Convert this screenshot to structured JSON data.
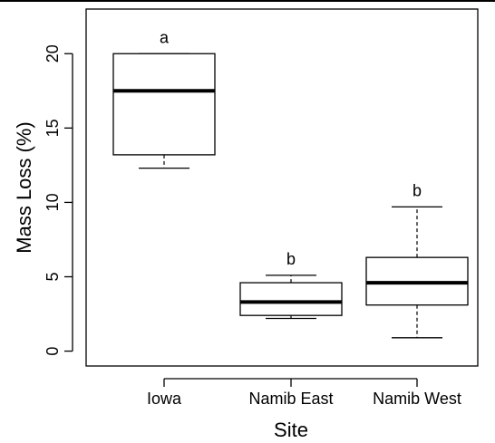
{
  "chart_data": {
    "type": "boxplot",
    "xlabel": "Site",
    "ylabel": "Mass Loss (%)",
    "ylim": [
      -1,
      23
    ],
    "yticks": [
      0,
      5,
      10,
      15,
      20
    ],
    "grid": false,
    "legend": "none",
    "categories": [
      "Iowa",
      "Namib East",
      "Namib West"
    ],
    "boxes": [
      {
        "category": "Iowa",
        "min": 12.3,
        "q1": 13.2,
        "median": 17.5,
        "q3": 20.0,
        "max": 20.0,
        "letter": "a"
      },
      {
        "category": "Namib East",
        "min": 2.2,
        "q1": 2.4,
        "median": 3.3,
        "q3": 4.6,
        "max": 5.1,
        "letter": "b"
      },
      {
        "category": "Namib West",
        "min": 0.9,
        "q1": 3.1,
        "median": 4.6,
        "q3": 6.3,
        "max": 9.7,
        "letter": "b"
      }
    ],
    "colors": {
      "box_fill": "#ffffff",
      "stroke": "#000000"
    }
  }
}
